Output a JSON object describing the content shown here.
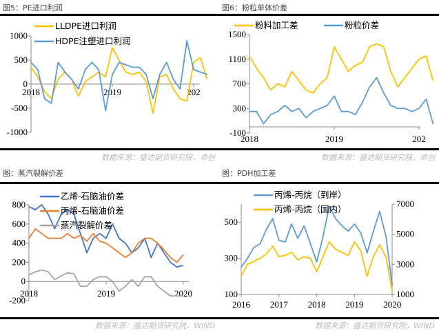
{
  "chart_data": [
    {
      "type": "line",
      "title": "图5：PE进口利润",
      "source": "数据来源：盛达期货研究院，卓创",
      "ylim": [
        -1000,
        1000
      ],
      "yticks": [
        "1000",
        "500",
        "0",
        "-500",
        "-1000"
      ],
      "ytick_values": [
        1000,
        500,
        0,
        -500,
        -1000
      ],
      "xticks": [
        "2018",
        "2019",
        "202"
      ],
      "xtick_dates": [
        "2018-01",
        "2019-01",
        "2020-01"
      ],
      "x_start": "2018-01",
      "grid": false,
      "legend": "top",
      "series": [
        {
          "name": "LLDPE进口利润",
          "color": "#FFC000",
          "values": [
            350,
            150,
            -150,
            -300,
            100,
            250,
            100,
            -250,
            50,
            150,
            250,
            150,
            750,
            500,
            250,
            200,
            250,
            50,
            -600,
            150,
            200,
            -100,
            -300,
            -350,
            450,
            550,
            100
          ]
        },
        {
          "name": "HDPE注塑进口利润",
          "color": "#5B9BD5",
          "values": [
            450,
            300,
            -300,
            -400,
            450,
            250,
            100,
            -100,
            300,
            450,
            300,
            -550,
            200,
            450,
            400,
            350,
            350,
            200,
            -300,
            200,
            450,
            100,
            -100,
            900,
            300,
            250,
            200
          ]
        }
      ]
    },
    {
      "type": "line",
      "title": "图6：粉粒单体价差",
      "source": "数据来源：盛达期货研究院，卓创",
      "ylim": [
        -100,
        1500
      ],
      "yticks": [
        "1500",
        "1100",
        "700",
        "300",
        "-100"
      ],
      "ytick_values": [
        1500,
        1100,
        700,
        300,
        -100
      ],
      "xticks": [
        "2018",
        "2019",
        "202"
      ],
      "xtick_dates": [
        "2018-01",
        "2019-01",
        "2020-01"
      ],
      "x_start": "2018-01",
      "baseline": 0,
      "grid": false,
      "legend": "top",
      "series": [
        {
          "name": "粉料加工差",
          "color": "#FFC000",
          "values": [
            1150,
            950,
            800,
            600,
            700,
            650,
            900,
            750,
            600,
            550,
            700,
            800,
            1300,
            1100,
            900,
            1000,
            1050,
            1300,
            1350,
            1300,
            900,
            650,
            800,
            950,
            1100,
            1150,
            750
          ]
        },
        {
          "name": "粉粒价差",
          "color": "#5B9BD5",
          "values": [
            250,
            250,
            50,
            200,
            250,
            350,
            250,
            300,
            150,
            250,
            300,
            350,
            500,
            250,
            250,
            200,
            400,
            650,
            800,
            550,
            350,
            300,
            300,
            250,
            300,
            450,
            50
          ]
        }
      ]
    },
    {
      "type": "line",
      "title": "图：蒸汽裂解价差",
      "source": "数据来源：盛达期货研究院，WIND",
      "ylim": [
        -200,
        800
      ],
      "yticks": [
        "800",
        "600",
        "400",
        "200",
        "0",
        "-200"
      ],
      "ytick_values": [
        800,
        600,
        400,
        200,
        0,
        -200
      ],
      "xticks": [
        "2018",
        "2019",
        "2020"
      ],
      "xtick_dates": [
        "2018-01",
        "2019-01",
        "2020-01"
      ],
      "x_start": "2018-01",
      "grid": false,
      "legend": "top",
      "series": [
        {
          "name": "乙烯-石脑油价差",
          "color": "#4472C4",
          "values": [
            780,
            750,
            800,
            700,
            550,
            700,
            750,
            700,
            500,
            300,
            450,
            500,
            450,
            600,
            450,
            400,
            300,
            350,
            450,
            250,
            400,
            300,
            200,
            150,
            170
          ]
        },
        {
          "name": "丙烯-石脑油价差",
          "color": "#ED7D31",
          "values": [
            450,
            550,
            500,
            450,
            450,
            450,
            500,
            450,
            480,
            420,
            500,
            420,
            400,
            350,
            300,
            250,
            300,
            400,
            450,
            450,
            400,
            330,
            250,
            200,
            280
          ]
        },
        {
          "name": "蒸汽裂解价差",
          "color": "#A5A5A5",
          "values": [
            70,
            100,
            120,
            100,
            20,
            60,
            90,
            80,
            -50,
            -50,
            20,
            50,
            50,
            0,
            -100,
            -50,
            20,
            -50,
            50,
            50,
            -50,
            -100,
            -150,
            -150,
            -150
          ]
        }
      ]
    },
    {
      "type": "line",
      "title": "图：PDH加工差",
      "source": "数据来源：盛达期货研究院，WIND",
      "ylim": [
        100,
        600
      ],
      "yticks": [
        "500",
        "300",
        "100"
      ],
      "ytick_values": [
        500,
        300,
        100
      ],
      "y2lim": [
        1000,
        7000
      ],
      "y2ticks": [
        "7000",
        "5000",
        "3000",
        "1000"
      ],
      "y2tick_values": [
        7000,
        5000,
        3000,
        1000
      ],
      "xticks": [
        "2016",
        "2017",
        "2018",
        "2019",
        "2020"
      ],
      "xtick_dates": [
        "2016-01",
        "2017-01",
        "2018-01",
        "2019-01",
        "2020-01"
      ],
      "x_start": "2016-01",
      "x_step_months": 2,
      "grid": false,
      "legend": "top",
      "series": [
        {
          "name": "丙烯-丙烷（到岸）",
          "color": "#5B9BD5",
          "axis": "left",
          "values": [
            250,
            300,
            360,
            380,
            460,
            520,
            400,
            390,
            490,
            410,
            480,
            380,
            280,
            420,
            590,
            520,
            480,
            450,
            490,
            440,
            330,
            450,
            560,
            420,
            150
          ]
        },
        {
          "name": "丙烯-丙烷（国内）",
          "color": "#FFC000",
          "axis": "right",
          "values": [
            2200,
            3000,
            3200,
            3400,
            3700,
            4200,
            3500,
            3600,
            3800,
            3300,
            3500,
            3400,
            2500,
            3500,
            4500,
            4000,
            3800,
            3600,
            4500,
            3900,
            2200,
            3500,
            4300,
            3500,
            1200
          ]
        }
      ]
    }
  ]
}
